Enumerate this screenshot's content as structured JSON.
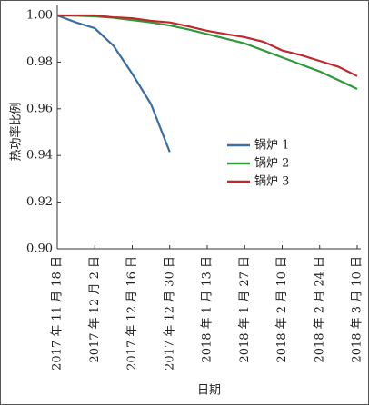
{
  "chart_data": {
    "type": "line",
    "x_label": "日期",
    "y_label": "热功率比例",
    "categories": [
      "2017 年 11 月 18 日",
      null,
      "2017 年 12 月 2 日",
      null,
      "2017 年 12 月 16 日",
      null,
      "2017 年 12 月 30 日",
      null,
      "2018 年 1 月 13 日",
      null,
      "2018 年 1 月 27 日",
      null,
      "2018 年 2 月 10 日",
      null,
      "2018 年 2 月 24 日",
      null,
      "2018 年 3 月 10 日"
    ],
    "series": [
      {
        "name": "锅炉 1",
        "color": "#3a6ea5",
        "values": [
          1.0,
          0.997,
          0.9945,
          0.987,
          0.975,
          0.962,
          0.9415,
          null,
          null,
          null,
          null,
          null,
          null,
          null,
          null,
          null,
          null
        ]
      },
      {
        "name": "锅炉 2",
        "color": "#2e9a3a",
        "values": [
          1.0,
          0.9999,
          0.9996,
          0.999,
          0.998,
          0.997,
          0.9957,
          0.994,
          0.992,
          0.99,
          0.988,
          0.985,
          0.982,
          0.979,
          0.976,
          0.9723,
          0.9685
        ]
      },
      {
        "name": "锅炉 3",
        "color": "#c0282d",
        "values": [
          1.0,
          1.0,
          1.0,
          0.9992,
          0.9988,
          0.9977,
          0.997,
          0.9953,
          0.9934,
          0.992,
          0.9907,
          0.9887,
          0.985,
          0.983,
          0.9805,
          0.978,
          0.974
        ]
      }
    ],
    "ylim": [
      0.9,
      1.0
    ],
    "yticks": [
      {
        "value": 0.9,
        "label": "0.90"
      },
      0.92,
      0.94,
      0.96,
      0.98,
      {
        "value": 1.0,
        "label": "1.00"
      }
    ]
  }
}
